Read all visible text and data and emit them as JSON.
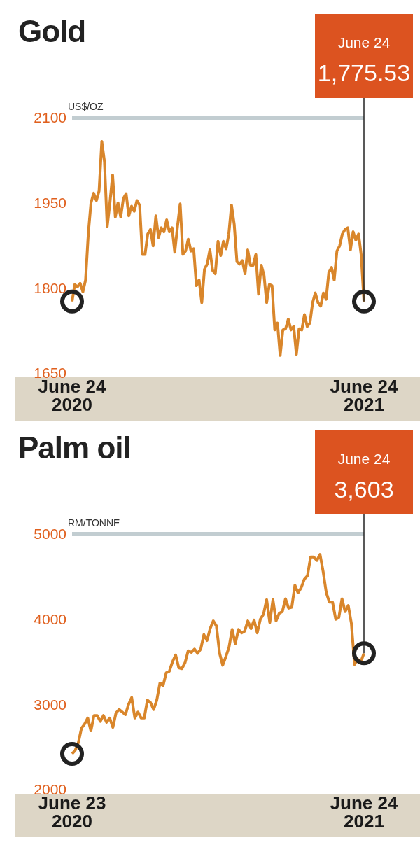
{
  "chart_data": [
    {
      "type": "line",
      "title": "Gold",
      "ylabel": "US$/OZ",
      "categories": [
        "June 24 2020",
        null,
        null,
        null,
        null,
        null,
        null,
        null,
        null,
        null,
        null,
        null,
        null,
        null,
        null,
        null,
        null,
        null,
        null,
        null,
        null,
        null,
        null,
        null,
        null,
        null,
        null,
        null,
        null,
        null,
        null,
        null,
        null,
        null,
        null,
        null,
        null,
        null,
        null,
        null,
        null,
        null,
        null,
        null,
        null,
        null,
        null,
        null,
        null,
        null,
        null,
        null,
        null,
        null,
        null,
        null,
        null,
        null,
        null,
        null,
        null,
        null,
        null,
        null,
        null,
        null,
        null,
        null,
        null,
        null,
        null,
        null,
        null,
        null,
        null,
        null,
        null,
        null,
        null,
        null,
        null,
        null,
        null,
        null,
        null,
        null,
        null,
        null,
        null,
        null,
        null,
        null,
        null,
        null,
        null,
        null,
        null,
        null,
        null,
        null,
        null,
        null,
        null,
        null,
        null,
        null,
        null,
        null,
        "June 24 2021"
      ],
      "series": [
        {
          "color": "#d9862b",
          "values": [
            1776,
            1806,
            1802,
            1808,
            1793,
            1814,
            1895,
            1950,
            1967,
            1954,
            1971,
            2058,
            2022,
            1908,
            1950,
            1999,
            1925,
            1950,
            1925,
            1958,
            1966,
            1927,
            1944,
            1935,
            1954,
            1946,
            1859,
            1859,
            1895,
            1903,
            1874,
            1927,
            1889,
            1906,
            1899,
            1920,
            1899,
            1906,
            1863,
            1908,
            1948,
            1859,
            1865,
            1886,
            1865,
            1869,
            1804,
            1814,
            1774,
            1833,
            1842,
            1867,
            1831,
            1825,
            1882,
            1857,
            1882,
            1869,
            1895,
            1946,
            1912,
            1846,
            1842,
            1848,
            1825,
            1867,
            1840,
            1840,
            1859,
            1789,
            1840,
            1823,
            1774,
            1806,
            1804,
            1726,
            1738,
            1681,
            1726,
            1728,
            1745,
            1726,
            1732,
            1683,
            1728,
            1726,
            1753,
            1732,
            1738,
            1774,
            1791,
            1774,
            1768,
            1791,
            1780,
            1827,
            1836,
            1814,
            1865,
            1874,
            1895,
            1903,
            1906,
            1867,
            1899,
            1884,
            1895,
            1857,
            1776
          ]
        }
      ],
      "ylim": [
        1650,
        2100
      ],
      "yticks": [
        1650,
        1800,
        1950,
        2100
      ],
      "grid": false,
      "ref_lines": [
        {
          "axis": "y",
          "value": 2100,
          "color": "#c2cdd1"
        }
      ],
      "annotations": [
        "June 24",
        "1,775.53"
      ]
    },
    {
      "type": "line",
      "title": "Palm oil",
      "ylabel": "RM/TONNE",
      "categories": [
        "June 23 2020",
        null,
        null,
        null,
        null,
        null,
        null,
        null,
        null,
        null,
        null,
        null,
        null,
        null,
        null,
        null,
        null,
        null,
        null,
        null,
        null,
        null,
        null,
        null,
        null,
        null,
        null,
        null,
        null,
        null,
        null,
        null,
        null,
        null,
        null,
        null,
        null,
        null,
        null,
        null,
        null,
        null,
        null,
        null,
        null,
        null,
        null,
        null,
        null,
        null,
        null,
        null,
        null,
        null,
        null,
        null,
        null,
        null,
        null,
        null,
        null,
        null,
        null,
        null,
        null,
        null,
        null,
        null,
        null,
        null,
        null,
        null,
        null,
        null,
        null,
        null,
        null,
        null,
        null,
        null,
        null,
        null,
        null,
        null,
        null,
        null,
        null,
        null,
        null,
        null,
        null,
        null,
        null,
        "June 24 2021"
      ],
      "series": [
        {
          "color": "#d9862b",
          "values": [
            2420,
            2460,
            2550,
            2720,
            2770,
            2840,
            2690,
            2870,
            2870,
            2800,
            2870,
            2790,
            2840,
            2730,
            2900,
            2940,
            2910,
            2880,
            3000,
            3080,
            2840,
            2910,
            2840,
            2840,
            3050,
            3020,
            2940,
            3050,
            3250,
            3220,
            3370,
            3390,
            3500,
            3580,
            3430,
            3420,
            3490,
            3630,
            3610,
            3650,
            3600,
            3650,
            3820,
            3750,
            3890,
            3980,
            3920,
            3600,
            3460,
            3560,
            3670,
            3880,
            3710,
            3880,
            3840,
            3860,
            3980,
            3890,
            3990,
            3840,
            4000,
            4060,
            4230,
            3960,
            4230,
            3980,
            4070,
            4090,
            4240,
            4130,
            4140,
            4400,
            4310,
            4370,
            4470,
            4510,
            4730,
            4730,
            4690,
            4760,
            4560,
            4310,
            4200,
            4200,
            4000,
            4020,
            4240,
            4090,
            4160,
            3950,
            3470,
            3530,
            3500,
            3600
          ]
        }
      ],
      "ylim": [
        2000,
        5000
      ],
      "yticks": [
        2000,
        3000,
        4000,
        5000
      ],
      "grid": false,
      "ref_lines": [
        {
          "axis": "y",
          "value": 5000,
          "color": "#c2cdd1"
        }
      ],
      "annotations": [
        "June 24",
        "3,603"
      ]
    }
  ]
}
